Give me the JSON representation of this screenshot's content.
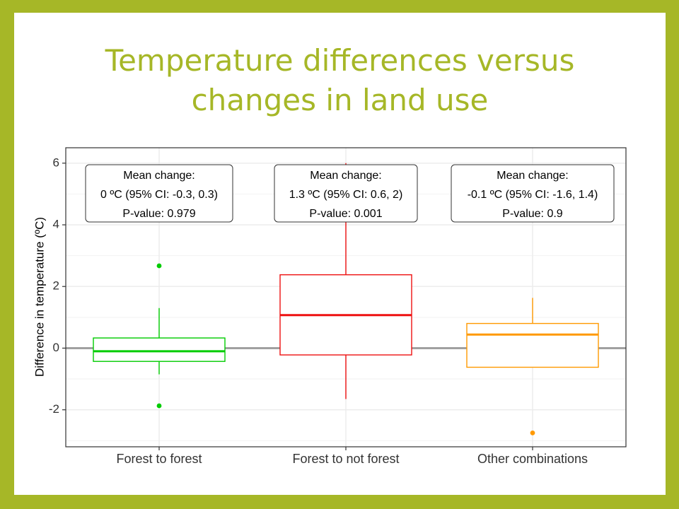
{
  "slide": {
    "title_line1": "Temperature differences versus",
    "title_line2": "changes in land use",
    "title_color": "#a6b727",
    "frame_color": "#a6b727"
  },
  "chart_data": {
    "type": "box",
    "xlabel": "",
    "ylabel": "Difference in temperature (ºC)",
    "ylim": [
      -3.2,
      6.5
    ],
    "yticks": [
      -2,
      0,
      2,
      4,
      6
    ],
    "ytick_labels": [
      "-2",
      "0",
      "2",
      "4",
      "6"
    ],
    "reference_line": 0,
    "grid": true,
    "categories": [
      "Forest to forest",
      "Forest to not forest",
      "Other combinations"
    ],
    "series": [
      {
        "category": "Forest to forest",
        "color": "#00cc00",
        "whisker_low": -0.85,
        "q1": -0.43,
        "median": -0.1,
        "q3": 0.33,
        "whisker_high": 1.3,
        "outliers": [
          2.67,
          -1.87
        ],
        "annotation": [
          "Mean change:",
          "0 ºC (95% CI: -0.3, 0.3)",
          "P-value: 0.979"
        ]
      },
      {
        "category": "Forest to not forest",
        "color": "#ee1111",
        "whisker_low": -1.65,
        "q1": -0.22,
        "median": 1.07,
        "q3": 2.38,
        "whisker_high": 6.0,
        "outliers": [],
        "annotation": [
          "Mean change:",
          "1.3 ºC (95% CI: 0.6, 2)",
          "P-value: 0.001"
        ]
      },
      {
        "category": "Other combinations",
        "color": "#ff9900",
        "whisker_low": -0.62,
        "q1": -0.62,
        "median": 0.44,
        "q3": 0.8,
        "whisker_high": 1.63,
        "outliers": [
          -2.75
        ],
        "annotation": [
          "Mean change:",
          "-0.1 ºC (95% CI: -1.6, 1.4)",
          "P-value: 0.9"
        ]
      }
    ]
  }
}
